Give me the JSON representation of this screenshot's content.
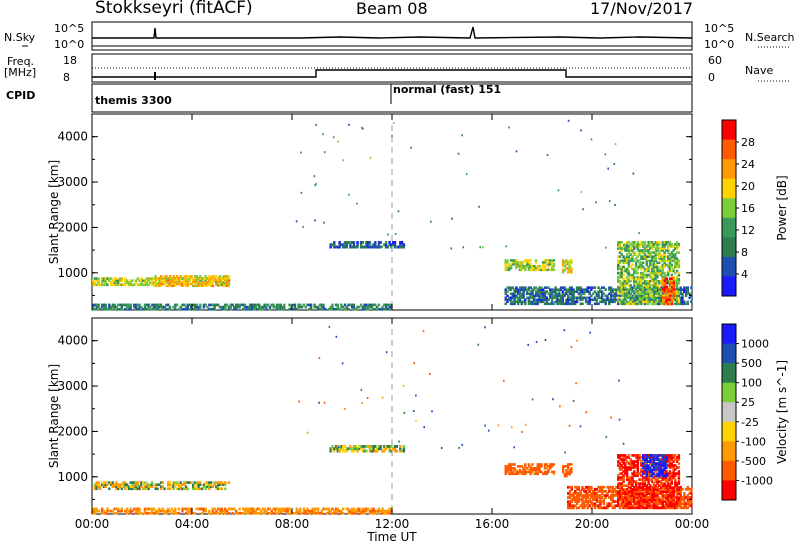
{
  "header": {
    "station": "Stokkseyri (fitACF)",
    "beam": "Beam 08",
    "date": "17/Nov/2017"
  },
  "top_strip": {
    "nsky_label": "N.Sky",
    "nsky_ticks": [
      "10^5",
      "10^0"
    ],
    "nsearch_label": "N.Search",
    "nsearch_ticks": [
      "10^5",
      "10^0"
    ],
    "freq_label": "Freq.",
    "freq_unit": "[MHz]",
    "freq_ticks": [
      "18",
      "8"
    ],
    "nave_label": "Nave",
    "nave_ticks": [
      "60",
      "0"
    ],
    "cpid_label": "CPID",
    "cpid_segments": [
      {
        "label": "themis 3300",
        "start_hour": 0
      },
      {
        "label": "normal (fast) 151",
        "start_hour": 12
      }
    ]
  },
  "colors": {
    "power_scale": [
      "#1a1aff",
      "#1f4fb0",
      "#2e7d4f",
      "#3a9a5a",
      "#7ccd3a",
      "#ffd200",
      "#ff9a00",
      "#ff5a00",
      "#ff0000"
    ],
    "velocity_scale": [
      "#ff0000",
      "#ff5a00",
      "#ff9a00",
      "#ffd200",
      "#c8c8c8",
      "#7ccd3a",
      "#2e7d4f",
      "#1f4fb0",
      "#1a1aff"
    ]
  },
  "chart_data": [
    {
      "type": "heatmap",
      "name": "power",
      "ylabel": "Slant Range [km]",
      "colorbar_label": "Power [dB]",
      "colorbar_ticks": [
        "4",
        "8",
        "12",
        "16",
        "20",
        "24",
        "28"
      ],
      "x_ticks": [
        "00:00",
        "04:00",
        "08:00",
        "12:00",
        "16:00",
        "20:00",
        "00:00"
      ],
      "y_ticks": [
        "1000",
        "2000",
        "3000",
        "4000"
      ],
      "xlim": [
        0,
        24
      ],
      "ylim": [
        180,
        4500
      ],
      "clim": [
        0,
        30
      ],
      "regions": [
        {
          "t0": 0.0,
          "t1": 5.5,
          "r0": 720,
          "r1": 900,
          "value": 16
        },
        {
          "t0": 2.5,
          "t1": 5.5,
          "r0": 700,
          "r1": 950,
          "value": 20
        },
        {
          "t0": 0.0,
          "t1": 12.0,
          "r0": 180,
          "r1": 320,
          "value": 8
        },
        {
          "t0": 9.5,
          "t1": 12.5,
          "r0": 1550,
          "r1": 1700,
          "value": 5
        },
        {
          "t0": 16.5,
          "t1": 18.5,
          "r0": 1050,
          "r1": 1300,
          "value": 16
        },
        {
          "t0": 18.8,
          "t1": 19.2,
          "r0": 1000,
          "r1": 1300,
          "value": 18
        },
        {
          "t0": 16.5,
          "t1": 24.0,
          "r0": 300,
          "r1": 700,
          "value": 6
        },
        {
          "t0": 21.0,
          "t1": 23.5,
          "r0": 300,
          "r1": 1700,
          "value": 14
        },
        {
          "t0": 22.8,
          "t1": 23.3,
          "r0": 300,
          "r1": 900,
          "value": 26
        }
      ]
    },
    {
      "type": "heatmap",
      "name": "velocity",
      "ylabel": "Slant Range [km]",
      "xlabel": "Time UT",
      "colorbar_label": "Velocity [m s^-1]",
      "colorbar_ticks": [
        "1000",
        "500",
        "100",
        "25",
        "-25",
        "-100",
        "-500",
        "-1000"
      ],
      "x_ticks": [
        "00:00",
        "04:00",
        "08:00",
        "12:00",
        "16:00",
        "20:00",
        "00:00"
      ],
      "y_ticks": [
        "1000",
        "2000",
        "3000",
        "4000"
      ],
      "xlim": [
        0,
        24
      ],
      "ylim": [
        180,
        4500
      ],
      "clim": [
        -1000,
        1000
      ],
      "regions": [
        {
          "t0": 0.0,
          "t1": 5.5,
          "r0": 720,
          "r1": 900,
          "value": 0
        },
        {
          "t0": 0.0,
          "t1": 12.0,
          "r0": 180,
          "r1": 320,
          "value": -60
        },
        {
          "t0": 9.5,
          "t1": 12.5,
          "r0": 1550,
          "r1": 1700,
          "value": 0
        },
        {
          "t0": 16.5,
          "t1": 18.5,
          "r0": 1050,
          "r1": 1300,
          "value": -150
        },
        {
          "t0": 18.8,
          "t1": 19.2,
          "r0": 1000,
          "r1": 1300,
          "value": -200
        },
        {
          "t0": 19.0,
          "t1": 24.0,
          "r0": 300,
          "r1": 800,
          "value": -300
        },
        {
          "t0": 21.0,
          "t1": 23.5,
          "r0": 300,
          "r1": 1500,
          "value": -500
        },
        {
          "t0": 22.0,
          "t1": 23.0,
          "r0": 1000,
          "r1": 1500,
          "value": 600
        }
      ]
    }
  ]
}
